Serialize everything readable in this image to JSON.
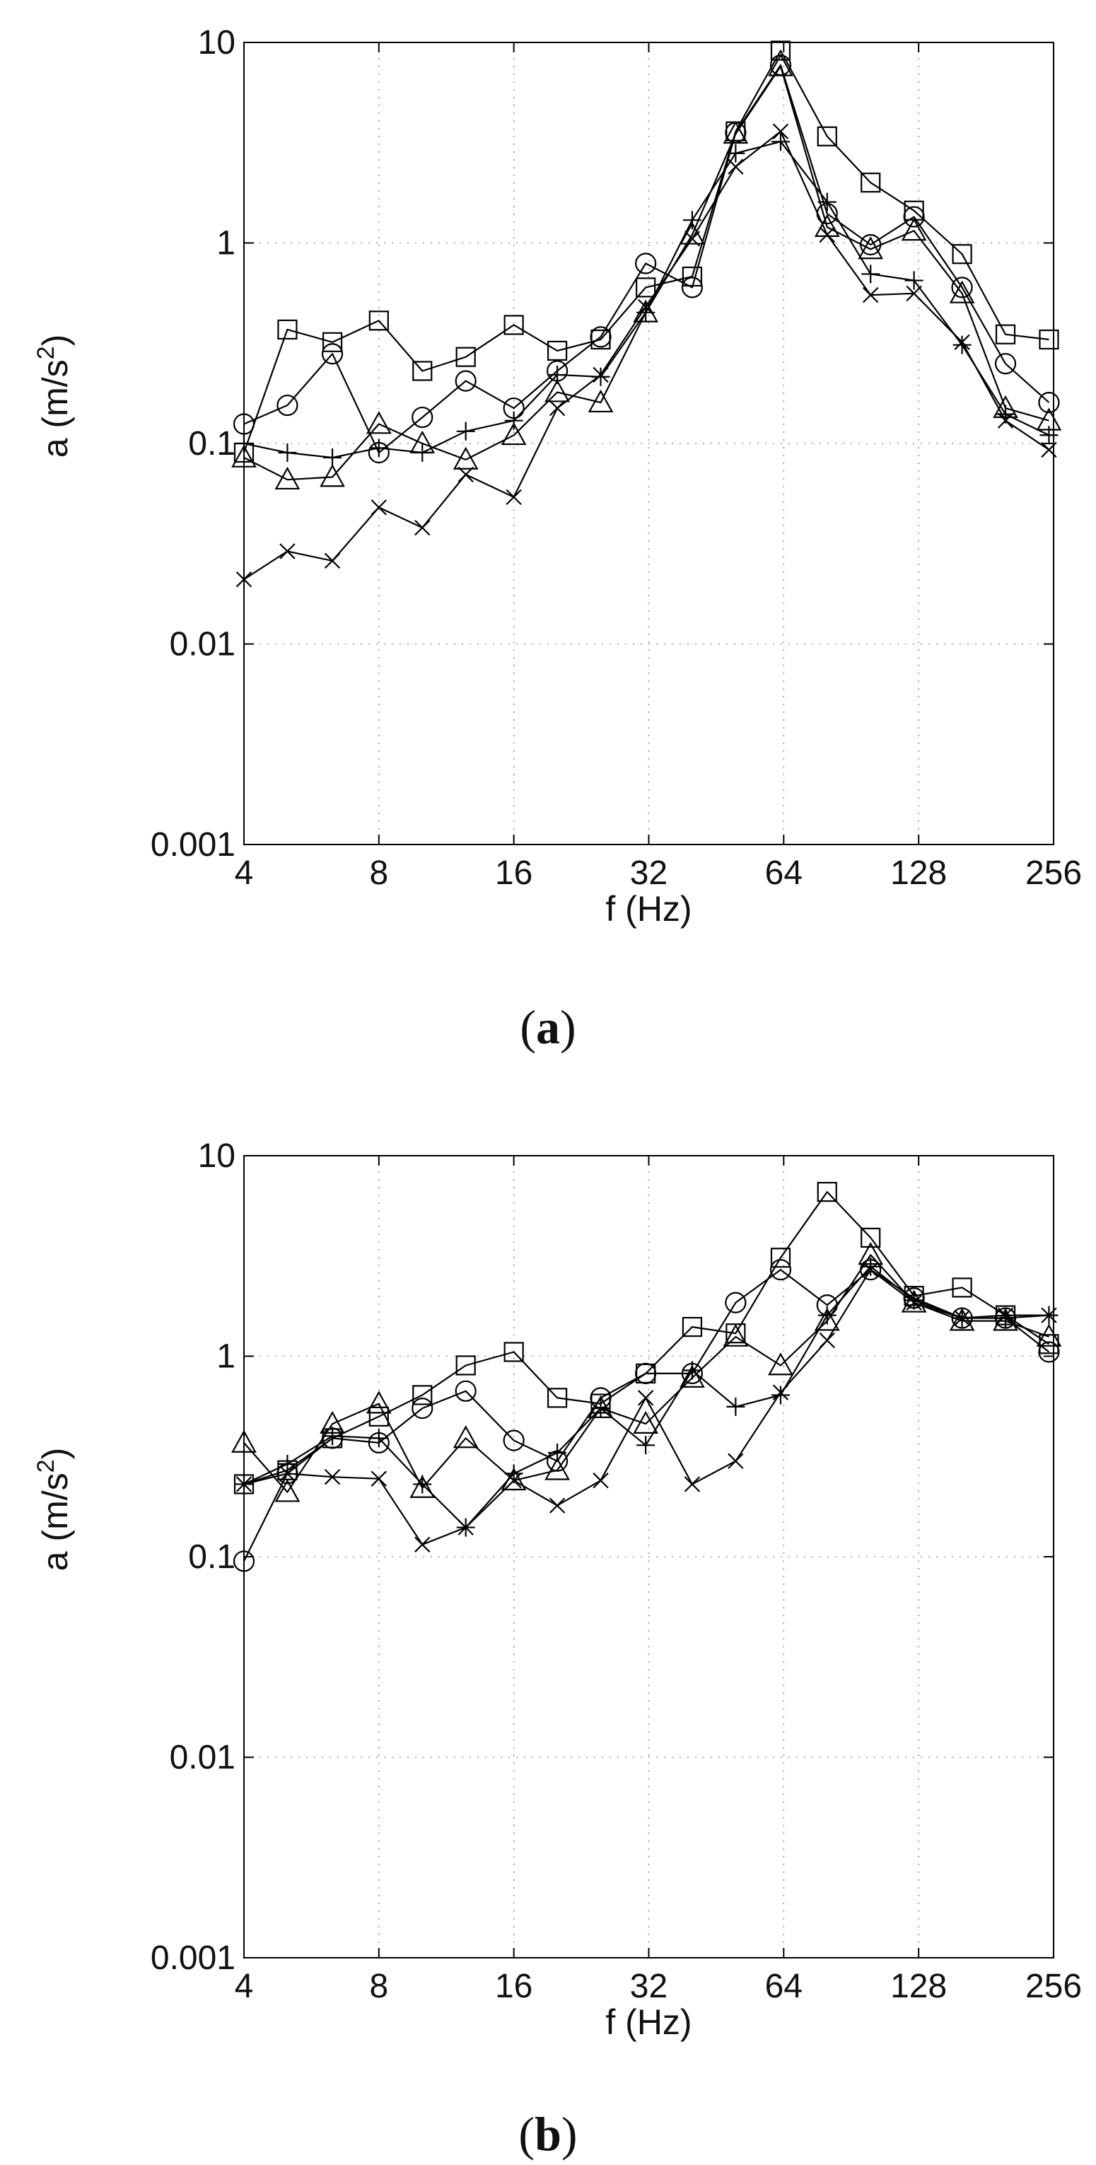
{
  "chart_data": [
    {
      "type": "line",
      "panel_label": "a",
      "xlabel": "f (Hz)",
      "ylabel": "a (m/s",
      "ylabel_superscript": "2",
      "ylabel_suffix": ")",
      "xscale": "log2",
      "yscale": "log10",
      "xlim": [
        4,
        256
      ],
      "ylim": [
        0.001,
        10
      ],
      "grid": true,
      "xticks": [
        4,
        8,
        16,
        32,
        64,
        128,
        256
      ],
      "xtick_labels": [
        "4",
        "8",
        "16",
        "32",
        "64",
        "128",
        "256"
      ],
      "yticks": [
        0.001,
        0.01,
        0.1,
        1,
        10
      ],
      "ytick_labels": [
        "0.001",
        "0.01",
        "0.1",
        "1",
        "10"
      ],
      "x": [
        4,
        5,
        6.3,
        8,
        10,
        12.5,
        16,
        20,
        25,
        31.5,
        40,
        50,
        63,
        80,
        100,
        125,
        160,
        200,
        250
      ],
      "series": [
        {
          "name": "square",
          "marker": "square",
          "values": [
            0.09,
            0.37,
            0.32,
            0.41,
            0.23,
            0.27,
            0.39,
            0.29,
            0.33,
            0.6,
            0.68,
            3.6,
            9.1,
            3.4,
            2.0,
            1.45,
            0.88,
            0.35,
            0.33
          ]
        },
        {
          "name": "circle",
          "marker": "circle",
          "values": [
            0.125,
            0.155,
            0.28,
            0.09,
            0.135,
            0.205,
            0.15,
            0.23,
            0.34,
            0.79,
            0.6,
            3.55,
            7.7,
            1.4,
            0.98,
            1.35,
            0.6,
            0.25,
            0.16
          ]
        },
        {
          "name": "triangle",
          "marker": "triangle",
          "values": [
            0.085,
            0.066,
            0.068,
            0.125,
            0.1,
            0.083,
            0.11,
            0.18,
            0.16,
            0.45,
            1.1,
            3.5,
            7.6,
            1.2,
            0.93,
            1.15,
            0.56,
            0.15,
            0.13
          ]
        },
        {
          "name": "plus",
          "marker": "plus",
          "values": [
            0.1,
            0.09,
            0.085,
            0.095,
            0.09,
            0.115,
            0.13,
            0.22,
            0.215,
            0.45,
            1.3,
            2.8,
            3.2,
            1.6,
            0.7,
            0.65,
            0.31,
            0.14,
            0.11
          ]
        },
        {
          "name": "cross",
          "marker": "cross",
          "values": [
            0.021,
            0.029,
            0.026,
            0.048,
            0.038,
            0.07,
            0.054,
            0.15,
            0.22,
            0.48,
            1.05,
            2.4,
            3.6,
            1.1,
            0.55,
            0.56,
            0.32,
            0.13,
            0.093
          ]
        }
      ]
    },
    {
      "type": "line",
      "panel_label": "b",
      "xlabel": "f (Hz)",
      "ylabel": "a (m/s",
      "ylabel_superscript": "2",
      "ylabel_suffix": ")",
      "xscale": "log2",
      "yscale": "log10",
      "xlim": [
        4,
        256
      ],
      "ylim": [
        0.001,
        10
      ],
      "grid": true,
      "xticks": [
        4,
        8,
        16,
        32,
        64,
        128,
        256
      ],
      "xtick_labels": [
        "4",
        "8",
        "16",
        "32",
        "64",
        "128",
        "256"
      ],
      "yticks": [
        0.001,
        0.01,
        0.1,
        1,
        10
      ],
      "ytick_labels": [
        "0.001",
        "0.01",
        "0.1",
        "1",
        "10"
      ],
      "x": [
        4,
        5,
        6.3,
        8,
        10,
        12.5,
        16,
        20,
        25,
        31.5,
        40,
        50,
        63,
        80,
        100,
        125,
        160,
        200,
        250
      ],
      "series": [
        {
          "name": "square",
          "marker": "square",
          "values": [
            0.23,
            0.27,
            0.39,
            0.5,
            0.64,
            0.9,
            1.05,
            0.62,
            0.58,
            0.82,
            1.4,
            1.3,
            3.1,
            6.6,
            3.9,
            2.0,
            2.2,
            1.6,
            1.15
          ]
        },
        {
          "name": "circle",
          "marker": "circle",
          "values": [
            0.095,
            0.26,
            0.39,
            0.37,
            0.55,
            0.67,
            0.38,
            0.3,
            0.62,
            0.82,
            0.82,
            1.85,
            2.7,
            1.8,
            2.7,
            1.95,
            1.55,
            1.55,
            1.05
          ]
        },
        {
          "name": "triangle",
          "marker": "triangle",
          "values": [
            0.37,
            0.21,
            0.46,
            0.58,
            0.22,
            0.39,
            0.24,
            0.27,
            0.55,
            0.46,
            0.78,
            1.25,
            0.9,
            1.5,
            3.2,
            1.85,
            1.5,
            1.5,
            1.25
          ]
        },
        {
          "name": "plus",
          "marker": "plus",
          "values": [
            0.23,
            0.29,
            0.4,
            0.39,
            0.23,
            0.14,
            0.26,
            0.33,
            0.55,
            0.36,
            0.85,
            0.56,
            0.64,
            1.6,
            2.8,
            1.9,
            1.55,
            1.55,
            1.6
          ]
        },
        {
          "name": "cross",
          "marker": "cross",
          "values": [
            0.23,
            0.26,
            0.25,
            0.245,
            0.115,
            0.14,
            0.24,
            0.18,
            0.24,
            0.62,
            0.23,
            0.3,
            0.66,
            1.2,
            2.7,
            1.85,
            1.55,
            1.6,
            1.6
          ]
        }
      ]
    }
  ],
  "captions": {
    "a": {
      "open": "(",
      "letter": "a",
      "close": ")"
    },
    "b": {
      "open": "(",
      "letter": "b",
      "close": ")"
    }
  }
}
